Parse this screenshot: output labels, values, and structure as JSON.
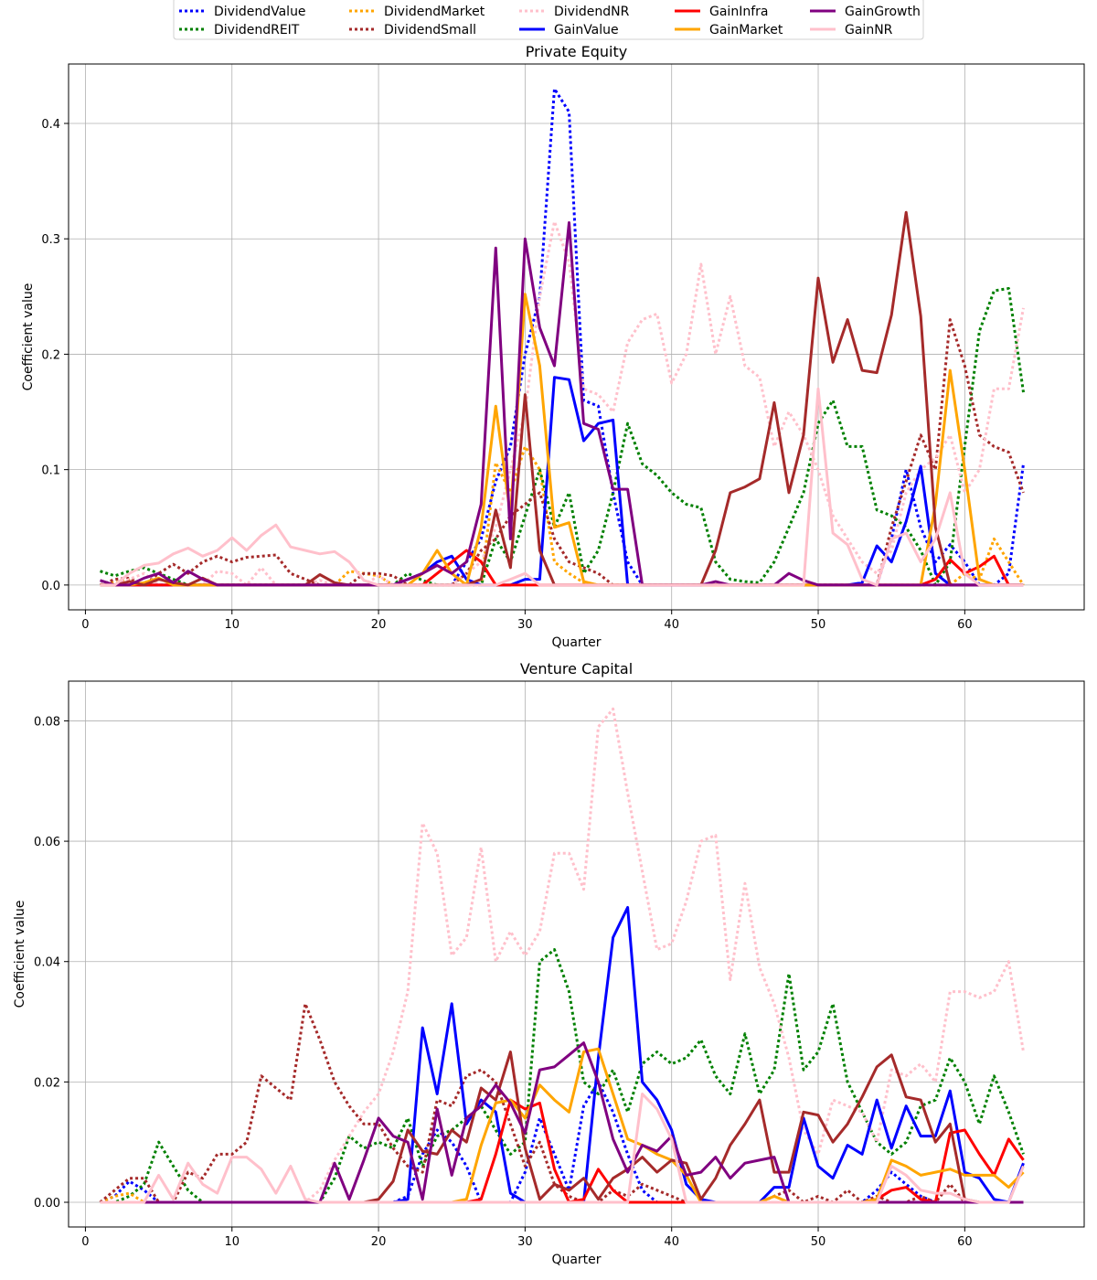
{
  "legend": {
    "placement": "top-center",
    "columns": 5,
    "entries": [
      {
        "name": "DividendValue",
        "color": "#0000ff",
        "style": "dotted"
      },
      {
        "name": "DividendREIT",
        "color": "#008000",
        "style": "dotted"
      },
      {
        "name": "DividendMarket",
        "color": "#ffa500",
        "style": "dotted"
      },
      {
        "name": "DividendSmall",
        "color": "#a52a2a",
        "style": "dotted"
      },
      {
        "name": "DividendNR",
        "color": "#ffc0cb",
        "style": "dotted"
      },
      {
        "name": "GainValue",
        "color": "#0000ff",
        "style": "solid"
      },
      {
        "name": "GainInfra",
        "color": "#ff0000",
        "style": "solid"
      },
      {
        "name": "GainMarket",
        "color": "#ffa500",
        "style": "solid"
      },
      {
        "name": "GainGrowth",
        "color": "#800080",
        "style": "solid"
      },
      {
        "name": "GainNR",
        "color": "#ffc0cb",
        "style": "solid"
      }
    ]
  },
  "chart_data": [
    {
      "type": "line",
      "title": "Private Equity",
      "xlabel": "Quarter",
      "ylabel": "Coefficient value",
      "xlim": [
        -1.15,
        68.15
      ],
      "ylim": [
        -0.0215,
        0.4515
      ],
      "xticks": [
        0,
        10,
        20,
        30,
        40,
        50,
        60
      ],
      "yticks": [
        0.0,
        0.1,
        0.2,
        0.3,
        0.4
      ],
      "ytick_labels": [
        "0.0",
        "0.1",
        "0.2",
        "0.3",
        "0.4"
      ],
      "grid": true,
      "x_start": 1,
      "series": [
        {
          "name": "DividendValue",
          "sparse": {
            "26": 0.02,
            "27": 0.04,
            "28": 0.09,
            "29": 0.12,
            "30": 0.2,
            "31": 0.25,
            "32": 0.43,
            "33": 0.41,
            "34": 0.16,
            "35": 0.155,
            "36": 0.08,
            "37": 0.02,
            "55": 0.04,
            "56": 0.1,
            "57": 0.05,
            "58": 0.02,
            "59": 0.035,
            "60": 0.02,
            "63": 0.01,
            "64": 0.105
          }
        },
        {
          "name": "DividendREIT",
          "sparse": {
            "1": 0.012,
            "2": 0.008,
            "3": 0.012,
            "4": 0.015,
            "5": 0.01,
            "6": 0.005,
            "22": 0.01,
            "23": 0.004,
            "28": 0.04,
            "29": 0.02,
            "30": 0.06,
            "31": 0.1,
            "32": 0.05,
            "33": 0.08,
            "34": 0.01,
            "35": 0.03,
            "36": 0.08,
            "37": 0.14,
            "38": 0.105,
            "39": 0.095,
            "40": 0.08,
            "41": 0.07,
            "42": 0.067,
            "43": 0.02,
            "44": 0.005,
            "45": 0.003,
            "46": 0.002,
            "47": 0.02,
            "48": 0.05,
            "49": 0.08,
            "50": 0.14,
            "51": 0.16,
            "52": 0.12,
            "53": 0.12,
            "54": 0.065,
            "55": 0.06,
            "56": 0.05,
            "57": 0.03,
            "59": 0.02,
            "60": 0.12,
            "61": 0.22,
            "62": 0.255,
            "63": 0.257,
            "64": 0.167
          }
        },
        {
          "name": "DividendMarket",
          "sparse": {
            "2": 0.002,
            "3": 0.004,
            "18": 0.012,
            "19": 0.01,
            "20": 0.008,
            "28": 0.106,
            "29": 0.08,
            "30": 0.12,
            "31": 0.1,
            "32": 0.02,
            "33": 0.01,
            "34": 0.002,
            "60": 0.01,
            "61": 0.005,
            "62": 0.04,
            "63": 0.02
          }
        },
        {
          "name": "DividendSmall",
          "sparse": {
            "2": 0.005,
            "3": 0.006,
            "5": 0.01,
            "6": 0.018,
            "7": 0.01,
            "8": 0.02,
            "9": 0.025,
            "10": 0.02,
            "11": 0.024,
            "12": 0.025,
            "13": 0.026,
            "14": 0.01,
            "15": 0.005,
            "19": 0.01,
            "20": 0.01,
            "21": 0.008,
            "26": 0.01,
            "27": 0.03,
            "28": 0.04,
            "29": 0.06,
            "30": 0.07,
            "31": 0.08,
            "32": 0.04,
            "33": 0.02,
            "34": 0.015,
            "35": 0.01,
            "55": 0.05,
            "56": 0.09,
            "57": 0.13,
            "58": 0.1,
            "59": 0.23,
            "60": 0.19,
            "61": 0.13,
            "62": 0.12,
            "63": 0.115,
            "64": 0.08
          }
        },
        {
          "name": "DividendNR",
          "sparse": {
            "3": 0.005,
            "4": 0.01,
            "9": 0.012,
            "10": 0.01,
            "12": 0.015,
            "16": 0.004,
            "20": 0.008,
            "26": 0.01,
            "27": 0.02,
            "28": 0.05,
            "29": 0.1,
            "30": 0.15,
            "31": 0.25,
            "32": 0.315,
            "33": 0.28,
            "34": 0.17,
            "35": 0.165,
            "36": 0.15,
            "37": 0.21,
            "38": 0.23,
            "39": 0.235,
            "40": 0.175,
            "41": 0.2,
            "42": 0.278,
            "43": 0.2,
            "44": 0.25,
            "45": 0.19,
            "46": 0.18,
            "47": 0.12,
            "48": 0.15,
            "49": 0.13,
            "50": 0.1,
            "51": 0.06,
            "52": 0.04,
            "53": 0.02,
            "54": 0.01,
            "55": 0.03,
            "56": 0.08,
            "57": 0.1,
            "58": 0.11,
            "59": 0.13,
            "60": 0.08,
            "61": 0.1,
            "62": 0.17,
            "63": 0.17,
            "64": 0.24
          }
        },
        {
          "name": "GainValue",
          "sparse": {
            "22": 0.005,
            "23": 0.01,
            "24": 0.02,
            "25": 0.025,
            "26": 0.005,
            "30": 0.005,
            "31": 0.005,
            "32": 0.18,
            "33": 0.178,
            "34": 0.125,
            "35": 0.14,
            "36": 0.143,
            "53": 0.002,
            "54": 0.034,
            "55": 0.02,
            "56": 0.055,
            "57": 0.103,
            "58": 0.01
          }
        },
        {
          "name": "GainInfra",
          "sparse": {
            "24": 0.01,
            "25": 0.02,
            "26": 0.03,
            "27": 0.02,
            "58": 0.005,
            "59": 0.022,
            "60": 0.01,
            "61": 0.016,
            "62": 0.025
          }
        },
        {
          "name": "GainMarket",
          "sparse": {
            "4": 0.002,
            "5": 0.006,
            "23": 0.01,
            "24": 0.03,
            "25": 0.01,
            "27": 0.05,
            "28": 0.155,
            "29": 0.06,
            "30": 0.252,
            "31": 0.19,
            "32": 0.05,
            "33": 0.054,
            "34": 0.003,
            "58": 0.07,
            "59": 0.186,
            "60": 0.1,
            "61": 0.005
          }
        },
        {
          "name": "GainGrowth",
          "sparse": {
            "1": 0.004,
            "4": 0.006,
            "5": 0.01,
            "6": 0.002,
            "7": 0.012,
            "8": 0.005,
            "22": 0.005,
            "23": 0.01,
            "24": 0.017,
            "25": 0.01,
            "26": 0.02,
            "27": 0.07,
            "28": 0.292,
            "29": 0.04,
            "30": 0.3,
            "31": 0.223,
            "32": 0.19,
            "33": 0.314,
            "34": 0.14,
            "35": 0.135,
            "36": 0.083,
            "37": 0.083,
            "43": 0.003,
            "48": 0.01,
            "49": 0.004
          }
        },
        {
          "name": "GainNR",
          "sparse": {
            "3": 0.01,
            "4": 0.017,
            "5": 0.019,
            "6": 0.027,
            "7": 0.032,
            "8": 0.025,
            "9": 0.03,
            "10": 0.041,
            "11": 0.03,
            "12": 0.043,
            "13": 0.052,
            "14": 0.033,
            "15": 0.03,
            "16": 0.027,
            "17": 0.029,
            "18": 0.02,
            "19": 0.004,
            "29": 0.005,
            "30": 0.01,
            "50": 0.17,
            "51": 0.045,
            "52": 0.035,
            "53": 0.005,
            "55": 0.04,
            "56": 0.045,
            "57": 0.02,
            "58": 0.04,
            "59": 0.08,
            "60": 0.01
          }
        }
      ],
      "brown_series": {
        "name": "DividendSmall-solid",
        "sparse": {
          "3": 0.003,
          "5": 0.005,
          "6": 0.002,
          "8": 0.006,
          "16": 0.009,
          "17": 0.002,
          "27": 0.005,
          "28": 0.065,
          "29": 0.015,
          "30": 0.165,
          "31": 0.03,
          "43": 0.03,
          "44": 0.08,
          "45": 0.085,
          "46": 0.092,
          "47": 0.158,
          "48": 0.08,
          "49": 0.13,
          "50": 0.266,
          "51": 0.193,
          "52": 0.23,
          "53": 0.186,
          "54": 0.184,
          "55": 0.234,
          "56": 0.323,
          "57": 0.233,
          "58": 0.05
        }
      }
    },
    {
      "type": "line",
      "title": "Venture Capital",
      "xlabel": "Quarter",
      "ylabel": "Coefficient value",
      "xlim": [
        -1.15,
        68.15
      ],
      "ylim": [
        -0.0041,
        0.0866
      ],
      "xticks": [
        0,
        10,
        20,
        30,
        40,
        50,
        60
      ],
      "yticks": [
        0.0,
        0.02,
        0.04,
        0.06,
        0.08
      ],
      "ytick_labels": [
        "0.00",
        "0.02",
        "0.04",
        "0.06",
        "0.08"
      ],
      "grid": true,
      "x_start": 1,
      "series": [
        {
          "name": "DividendValue",
          "sparse": {
            "2": 0.001,
            "3": 0.0035,
            "4": 0.002,
            "22": 0.001,
            "23": 0.008,
            "24": 0.012,
            "25": 0.01,
            "26": 0.006,
            "30": 0.005,
            "31": 0.014,
            "32": 0.008,
            "33": 0.002,
            "34": 0.016,
            "35": 0.02,
            "36": 0.015,
            "37": 0.008,
            "38": 0.002,
            "54": 0.002,
            "55": 0.005,
            "56": 0.003,
            "57": 0.001
          }
        },
        {
          "name": "DividendREIT",
          "sparse": {
            "3": 0.001,
            "4": 0.003,
            "5": 0.01,
            "6": 0.006,
            "7": 0.002,
            "17": 0.004,
            "18": 0.011,
            "19": 0.009,
            "20": 0.01,
            "21": 0.009,
            "22": 0.014,
            "23": 0.006,
            "24": 0.011,
            "25": 0.012,
            "26": 0.014,
            "27": 0.016,
            "28": 0.012,
            "29": 0.008,
            "30": 0.01,
            "31": 0.04,
            "32": 0.042,
            "33": 0.035,
            "34": 0.02,
            "35": 0.018,
            "36": 0.022,
            "37": 0.015,
            "38": 0.023,
            "39": 0.025,
            "40": 0.023,
            "41": 0.024,
            "42": 0.027,
            "43": 0.021,
            "44": 0.018,
            "45": 0.028,
            "46": 0.018,
            "47": 0.022,
            "48": 0.038,
            "49": 0.022,
            "50": 0.025,
            "51": 0.033,
            "52": 0.02,
            "53": 0.015,
            "54": 0.01,
            "55": 0.008,
            "56": 0.01,
            "57": 0.016,
            "58": 0.017,
            "59": 0.024,
            "60": 0.02,
            "61": 0.013,
            "62": 0.021,
            "63": 0.015,
            "64": 0.008
          }
        },
        {
          "name": "DividendMarket",
          "sparse": {
            "2": 0.001,
            "3": 0.0015
          }
        },
        {
          "name": "DividendSmall",
          "sparse": {
            "2": 0.002,
            "3": 0.004,
            "4": 0.004,
            "7": 0.005,
            "8": 0.004,
            "9": 0.008,
            "10": 0.008,
            "11": 0.01,
            "12": 0.021,
            "13": 0.019,
            "14": 0.017,
            "15": 0.033,
            "16": 0.027,
            "17": 0.02,
            "18": 0.016,
            "19": 0.013,
            "20": 0.013,
            "21": 0.009,
            "22": 0.006,
            "23": 0.005,
            "24": 0.017,
            "25": 0.016,
            "26": 0.021,
            "27": 0.022,
            "28": 0.02,
            "29": 0.013,
            "30": 0.006,
            "31": 0.01,
            "32": 0.003,
            "33": 0.001,
            "36": 0.002,
            "37": 0.001,
            "38": 0.003,
            "39": 0.002,
            "40": 0.001,
            "47": 0.001,
            "48": 0.002,
            "50": 0.001,
            "52": 0.002,
            "54": 0.001,
            "57": 0.001,
            "59": 0.003
          }
        },
        {
          "name": "DividendNR",
          "sparse": {
            "16": 0.002,
            "17": 0.007,
            "18": 0.011,
            "19": 0.015,
            "20": 0.018,
            "21": 0.025,
            "22": 0.035,
            "23": 0.063,
            "24": 0.058,
            "25": 0.041,
            "26": 0.044,
            "27": 0.059,
            "28": 0.04,
            "29": 0.045,
            "30": 0.041,
            "31": 0.045,
            "32": 0.058,
            "33": 0.058,
            "34": 0.052,
            "35": 0.079,
            "36": 0.082,
            "37": 0.068,
            "38": 0.055,
            "39": 0.042,
            "40": 0.043,
            "41": 0.05,
            "42": 0.06,
            "43": 0.061,
            "44": 0.037,
            "45": 0.053,
            "46": 0.039,
            "47": 0.033,
            "48": 0.024,
            "49": 0.012,
            "50": 0.008,
            "51": 0.017,
            "52": 0.016,
            "53": 0.015,
            "54": 0.01,
            "55": 0.022,
            "56": 0.021,
            "57": 0.023,
            "58": 0.02,
            "59": 0.035,
            "60": 0.035,
            "61": 0.034,
            "62": 0.035,
            "63": 0.04,
            "64": 0.025
          }
        },
        {
          "name": "GainValue",
          "sparse": {
            "22": 0.0005,
            "23": 0.029,
            "24": 0.018,
            "25": 0.033,
            "26": 0.013,
            "27": 0.017,
            "28": 0.015,
            "29": 0.0015,
            "35": 0.024,
            "36": 0.044,
            "37": 0.049,
            "38": 0.02,
            "39": 0.017,
            "40": 0.012,
            "41": 0.003,
            "42": 0.0005,
            "47": 0.0025,
            "48": 0.0025,
            "49": 0.014,
            "50": 0.006,
            "51": 0.004,
            "52": 0.0095,
            "53": 0.008,
            "54": 0.017,
            "55": 0.009,
            "56": 0.016,
            "57": 0.011,
            "58": 0.011,
            "59": 0.0185,
            "60": 0.005,
            "61": 0.004,
            "62": 0.0005,
            "64": 0.0065
          }
        },
        {
          "name": "GainInfra",
          "sparse": {
            "27": 0.0005,
            "28": 0.008,
            "29": 0.017,
            "30": 0.0155,
            "31": 0.0165,
            "32": 0.0055,
            "34": 0.0005,
            "35": 0.0055,
            "36": 0.002,
            "54": 0.0005,
            "55": 0.002,
            "56": 0.0025,
            "57": 0.0005,
            "59": 0.0115,
            "60": 0.012,
            "61": 0.008,
            "62": 0.0045,
            "63": 0.0105,
            "64": 0.007
          }
        },
        {
          "name": "GainMarket",
          "sparse": {
            "26": 0.0005,
            "27": 0.0095,
            "28": 0.0165,
            "29": 0.017,
            "30": 0.014,
            "31": 0.0195,
            "32": 0.017,
            "33": 0.015,
            "34": 0.025,
            "35": 0.0255,
            "36": 0.018,
            "37": 0.0105,
            "38": 0.0095,
            "39": 0.008,
            "40": 0.007,
            "41": 0.0045,
            "47": 0.001,
            "54": 0.0005,
            "55": 0.007,
            "56": 0.006,
            "57": 0.0045,
            "58": 0.005,
            "59": 0.0055,
            "60": 0.0045,
            "61": 0.0045,
            "62": 0.0045,
            "63": 0.0025,
            "64": 0.005
          }
        },
        {
          "name": "GainGrowth",
          "sparse": {
            "17": 0.0065,
            "18": 0.0005,
            "19": 0.007,
            "20": 0.014,
            "21": 0.011,
            "22": 0.01,
            "23": 0.0005,
            "24": 0.0155,
            "25": 0.0045,
            "26": 0.014,
            "27": 0.016,
            "28": 0.0195,
            "29": 0.0165,
            "30": 0.0115,
            "31": 0.022,
            "32": 0.0225,
            "33": 0.0245,
            "34": 0.0265,
            "35": 0.02,
            "36": 0.0105,
            "37": 0.005,
            "38": 0.0095,
            "39": 0.0085,
            "40": 0.011,
            "41": 0.0045,
            "42": 0.005,
            "43": 0.0075,
            "44": 0.004,
            "45": 0.0065,
            "46": 0.007,
            "47": 0.0075
          }
        },
        {
          "name": "GainNR",
          "sparse": {
            "5": 0.0045,
            "6": 0.0005,
            "7": 0.0065,
            "8": 0.003,
            "9": 0.0015,
            "10": 0.0075,
            "11": 0.0075,
            "12": 0.0055,
            "13": 0.0015,
            "14": 0.006,
            "15": 0.0005,
            "38": 0.018,
            "39": 0.0155,
            "40": 0.0105,
            "55": 0.006,
            "56": 0.0045,
            "57": 0.002,
            "58": 0.0015,
            "59": 0.0015,
            "60": 0.0005,
            "64": 0.006
          }
        }
      ],
      "brown_series": {
        "name": "DividendSmall-solid",
        "sparse": {
          "20": 0.0005,
          "21": 0.0035,
          "22": 0.012,
          "23": 0.0085,
          "24": 0.008,
          "25": 0.012,
          "26": 0.01,
          "27": 0.019,
          "28": 0.017,
          "29": 0.025,
          "30": 0.009,
          "31": 0.0005,
          "32": 0.003,
          "33": 0.002,
          "34": 0.004,
          "35": 0.0005,
          "36": 0.004,
          "37": 0.0055,
          "38": 0.0075,
          "39": 0.005,
          "40": 0.007,
          "41": 0.0065,
          "42": 0.0005,
          "43": 0.004,
          "44": 0.0095,
          "45": 0.013,
          "46": 0.017,
          "47": 0.005,
          "48": 0.005,
          "49": 0.015,
          "50": 0.0145,
          "51": 0.01,
          "52": 0.013,
          "53": 0.0175,
          "54": 0.0225,
          "55": 0.0245,
          "56": 0.0175,
          "57": 0.017,
          "58": 0.01,
          "59": 0.013,
          "60": 0.0005
        }
      }
    }
  ]
}
